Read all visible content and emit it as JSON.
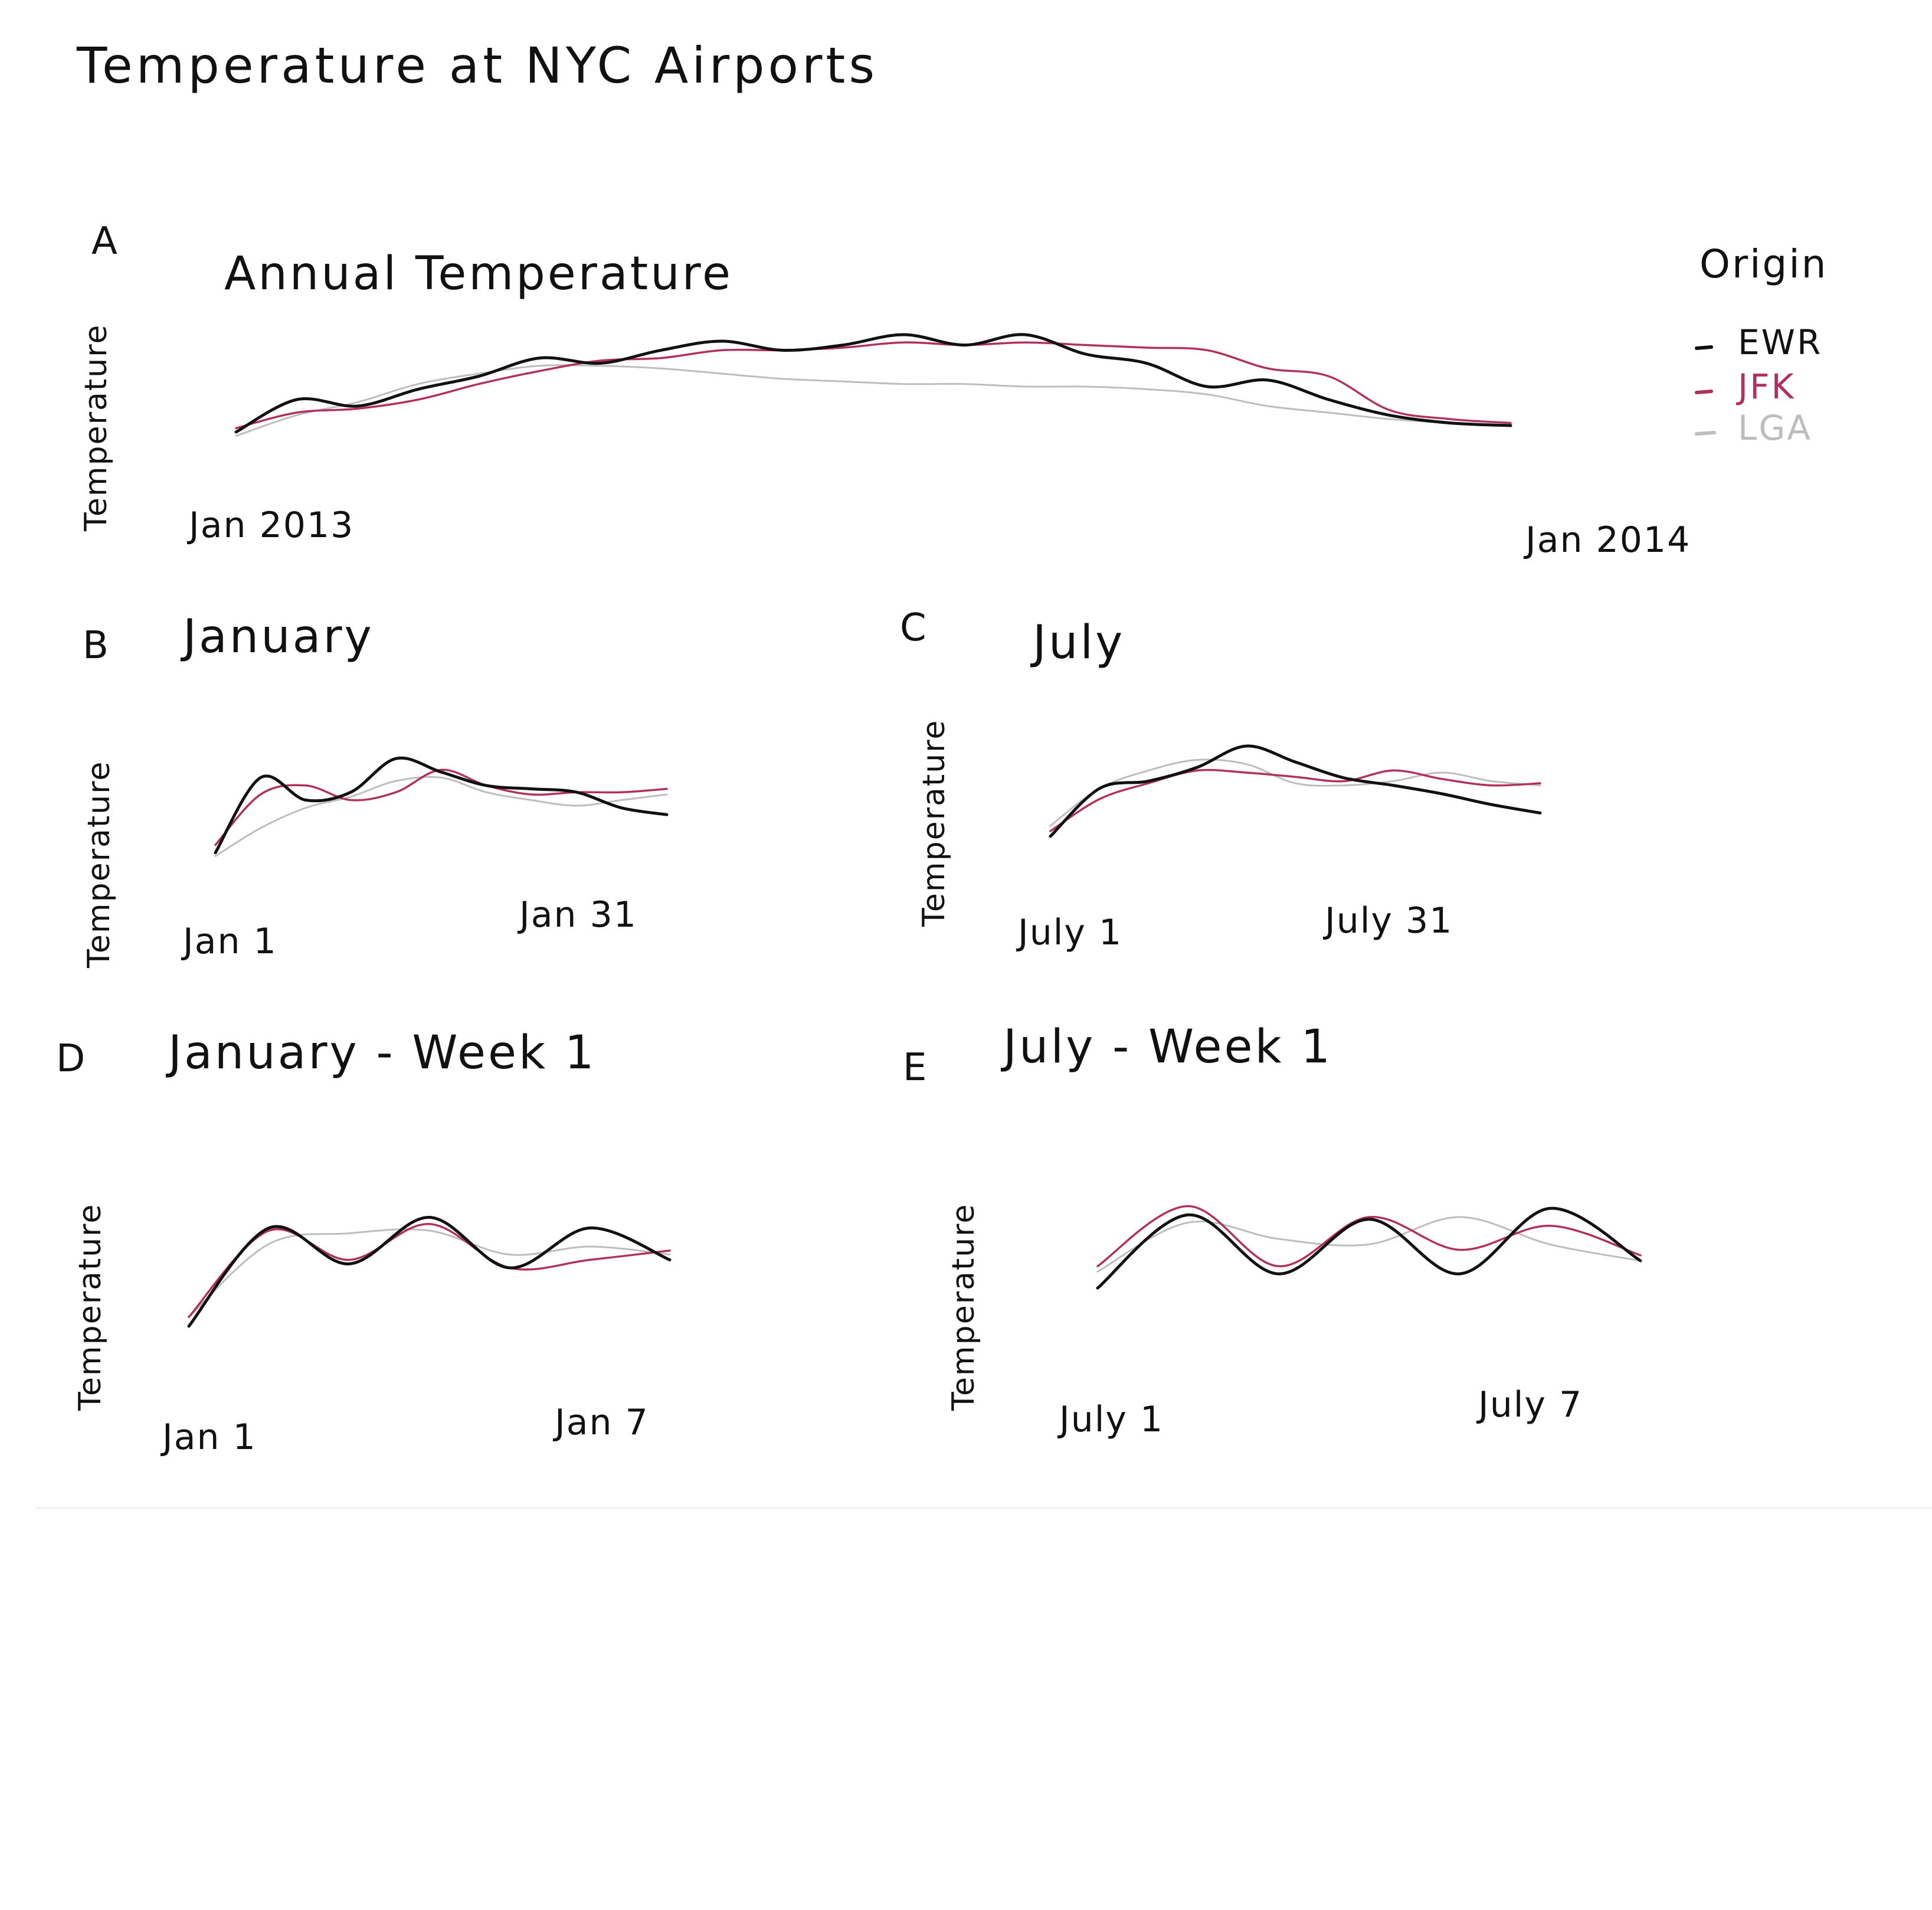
{
  "title": "Temperature at NYC Airports",
  "legend": {
    "title": "Origin",
    "items": [
      {
        "label": "EWR",
        "color": "#111111"
      },
      {
        "label": "JFK",
        "color": "#b03060"
      },
      {
        "label": "LGA",
        "color": "#bdbdbd"
      }
    ]
  },
  "chart_data": [
    {
      "id": "A",
      "letter": "A",
      "type": "line",
      "title": "Annual Temperature",
      "ylabel": "Temperature",
      "xlabel": "",
      "x_start_label": "Jan 2013",
      "x_end_label": "Jan 2014",
      "legend_position": "top-right",
      "grid": false,
      "ylim": [
        0,
        100
      ],
      "series": [
        {
          "name": "EWR",
          "values": [
            15,
            40,
            35,
            48,
            58,
            72,
            68,
            78,
            85,
            78,
            82,
            90,
            82,
            90,
            75,
            68,
            50,
            55,
            40,
            28,
            22,
            20
          ]
        },
        {
          "name": "JFK",
          "values": [
            18,
            30,
            33,
            40,
            52,
            62,
            70,
            72,
            78,
            78,
            80,
            84,
            82,
            84,
            82,
            80,
            78,
            64,
            58,
            32,
            25,
            22
          ]
        },
        {
          "name": "LGA",
          "values": [
            12,
            28,
            38,
            52,
            60,
            66,
            66,
            64,
            60,
            56,
            54,
            52,
            52,
            50,
            50,
            48,
            44,
            35,
            30,
            25,
            22,
            20
          ]
        }
      ]
    },
    {
      "id": "B",
      "letter": "B",
      "type": "line",
      "title": "January",
      "ylabel": "Temperature",
      "xlabel": "",
      "x_start_label": "Jan 1",
      "x_end_label": "Jan 31",
      "grid": false,
      "ylim": [
        0,
        100
      ],
      "series": [
        {
          "name": "EWR",
          "values": [
            8,
            75,
            55,
            62,
            92,
            80,
            68,
            65,
            62,
            48,
            42
          ]
        },
        {
          "name": "JFK",
          "values": [
            15,
            60,
            68,
            55,
            62,
            82,
            68,
            60,
            62,
            62,
            65
          ]
        },
        {
          "name": "LGA",
          "values": [
            5,
            30,
            48,
            58,
            72,
            75,
            62,
            55,
            50,
            55,
            60
          ]
        }
      ]
    },
    {
      "id": "C",
      "letter": "C",
      "type": "line",
      "title": "July",
      "ylabel": "Temperature",
      "xlabel": "",
      "x_start_label": "July 1",
      "x_end_label": "July 31",
      "grid": false,
      "ylim": [
        0,
        100
      ],
      "series": [
        {
          "name": "EWR",
          "values": [
            10,
            55,
            62,
            75,
            95,
            80,
            65,
            58,
            50,
            40,
            32
          ]
        },
        {
          "name": "JFK",
          "values": [
            15,
            45,
            60,
            72,
            70,
            66,
            62,
            72,
            64,
            58,
            60
          ]
        },
        {
          "name": "LGA",
          "values": [
            20,
            55,
            72,
            82,
            78,
            60,
            58,
            62,
            70,
            62,
            58
          ]
        }
      ]
    },
    {
      "id": "D",
      "letter": "D",
      "type": "line",
      "title": "January - Week 1",
      "ylabel": "Temperature",
      "xlabel": "",
      "x_start_label": "Jan 1",
      "x_end_label": "Jan 7",
      "grid": false,
      "ylim": [
        0,
        100
      ],
      "series": [
        {
          "name": "EWR",
          "values": [
            8,
            82,
            55,
            90,
            52,
            82,
            58
          ]
        },
        {
          "name": "JFK",
          "values": [
            15,
            80,
            58,
            85,
            52,
            58,
            65
          ]
        },
        {
          "name": "LGA",
          "values": [
            15,
            70,
            78,
            80,
            62,
            68,
            62
          ]
        }
      ]
    },
    {
      "id": "E",
      "letter": "E",
      "type": "line",
      "title": "July - Week 1",
      "ylabel": "Temperature",
      "xlabel": "",
      "x_start_label": "July 1",
      "x_end_label": "July 7",
      "grid": false,
      "ylim": [
        0,
        100
      ],
      "series": [
        {
          "name": "EWR",
          "values": [
            15,
            82,
            28,
            78,
            28,
            88,
            40
          ]
        },
        {
          "name": "JFK",
          "values": [
            35,
            90,
            35,
            80,
            50,
            72,
            45
          ]
        },
        {
          "name": "LGA",
          "values": [
            30,
            75,
            60,
            55,
            80,
            55,
            40
          ]
        }
      ]
    }
  ]
}
